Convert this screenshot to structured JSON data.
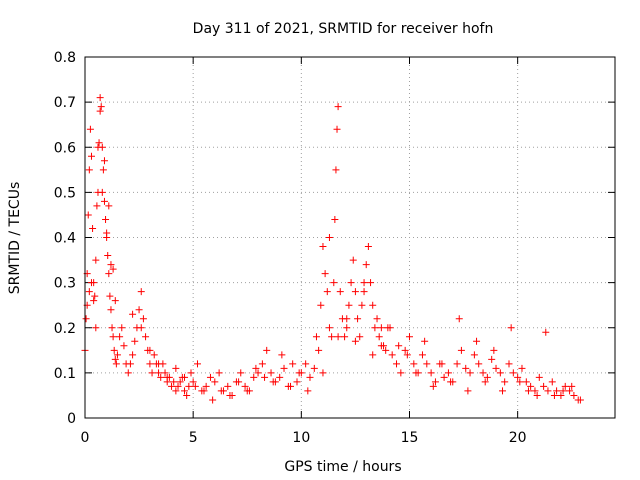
{
  "chart_data": {
    "type": "scatter",
    "title": "Day 311 of 2021, SRMTID for receiver hofn",
    "xlabel": "GPS time / hours",
    "ylabel": "SRMTID / TECUs",
    "xlim": [
      0,
      24.5
    ],
    "ylim": [
      0,
      0.8
    ],
    "xticks": [
      0,
      5,
      10,
      15,
      20
    ],
    "xtick_labels": [
      "0",
      "5",
      "10",
      "15",
      "20"
    ],
    "yticks": [
      0,
      0.1,
      0.2,
      0.3,
      0.4,
      0.5,
      0.6,
      0.7,
      0.8
    ],
    "ytick_labels": [
      "0",
      "0.1",
      "0.2",
      "0.3",
      "0.4",
      "0.5",
      "0.6",
      "0.7",
      "0.8"
    ],
    "grid": true,
    "marker": "+",
    "color": "#ff0000",
    "series": [
      {
        "name": "SRMTID",
        "x": [
          0.0,
          0.05,
          0.1,
          0.15,
          0.2,
          0.25,
          0.3,
          0.35,
          0.4,
          0.45,
          0.5,
          0.55,
          0.6,
          0.65,
          0.7,
          0.75,
          0.8,
          0.85,
          0.9,
          0.95,
          1.0,
          1.05,
          1.1,
          1.15,
          1.2,
          1.25,
          1.3,
          1.35,
          1.4,
          1.45,
          1.5,
          1.6,
          1.7,
          1.8,
          1.9,
          2.0,
          2.1,
          2.2,
          2.3,
          2.4,
          2.5,
          2.6,
          2.7,
          2.8,
          2.9,
          3.0,
          3.1,
          3.2,
          3.3,
          3.4,
          3.5,
          3.6,
          3.7,
          3.8,
          3.9,
          4.0,
          4.1,
          4.2,
          4.3,
          4.4,
          4.5,
          4.6,
          4.7,
          4.8,
          4.9,
          5.0,
          5.2,
          5.4,
          5.6,
          5.8,
          6.0,
          6.2,
          6.4,
          6.6,
          6.8,
          7.0,
          7.2,
          7.4,
          7.6,
          7.8,
          8.0,
          8.2,
          8.4,
          8.6,
          8.8,
          9.0,
          9.2,
          9.4,
          9.6,
          9.8,
          10.0,
          10.2,
          10.4,
          10.6,
          10.8,
          10.9,
          11.0,
          11.1,
          11.2,
          11.3,
          11.4,
          11.5,
          11.55,
          11.6,
          11.65,
          11.7,
          11.8,
          11.9,
          12.0,
          12.1,
          12.2,
          12.3,
          12.4,
          12.5,
          12.6,
          12.7,
          12.8,
          12.9,
          13.0,
          13.1,
          13.2,
          13.3,
          13.4,
          13.5,
          13.6,
          13.7,
          13.8,
          13.9,
          14.0,
          14.2,
          14.4,
          14.6,
          14.8,
          15.0,
          15.2,
          15.4,
          15.6,
          15.8,
          16.0,
          16.2,
          16.4,
          16.6,
          16.8,
          17.0,
          17.2,
          17.4,
          17.6,
          17.8,
          18.0,
          18.2,
          18.4,
          18.6,
          18.8,
          19.0,
          19.2,
          19.4,
          19.6,
          19.8,
          20.0,
          20.2,
          20.4,
          20.6,
          20.8,
          21.0,
          21.2,
          21.4,
          21.6,
          21.8,
          22.0,
          22.2,
          22.4,
          22.6,
          22.8,
          0.1,
          0.3,
          0.5,
          0.7,
          0.9,
          1.1,
          1.3,
          0.2,
          0.4,
          0.6,
          0.8,
          1.0,
          1.2,
          1.4,
          2.2,
          2.6,
          3.0,
          3.4,
          3.8,
          4.2,
          4.6,
          5.1,
          5.5,
          5.9,
          6.3,
          6.7,
          7.1,
          7.5,
          7.9,
          8.3,
          8.7,
          9.1,
          9.5,
          9.9,
          10.3,
          10.7,
          11.0,
          11.3,
          11.7,
          12.1,
          12.5,
          12.9,
          13.3,
          13.7,
          14.1,
          14.5,
          14.9,
          15.3,
          15.7,
          16.1,
          16.5,
          16.9,
          17.3,
          17.7,
          18.1,
          18.5,
          18.9,
          19.3,
          19.7,
          20.1,
          20.5,
          20.9,
          21.3,
          21.7,
          22.1,
          22.5,
          22.9
        ],
        "y": [
          0.15,
          0.22,
          0.32,
          0.45,
          0.55,
          0.64,
          0.58,
          0.42,
          0.3,
          0.27,
          0.35,
          0.47,
          0.5,
          0.61,
          0.71,
          0.69,
          0.6,
          0.55,
          0.48,
          0.44,
          0.4,
          0.36,
          0.32,
          0.27,
          0.24,
          0.2,
          0.18,
          0.15,
          0.13,
          0.12,
          0.14,
          0.18,
          0.2,
          0.16,
          0.12,
          0.1,
          0.12,
          0.14,
          0.17,
          0.2,
          0.24,
          0.28,
          0.22,
          0.18,
          0.15,
          0.12,
          0.1,
          0.14,
          0.12,
          0.1,
          0.09,
          0.12,
          0.1,
          0.08,
          0.09,
          0.07,
          0.08,
          0.06,
          0.07,
          0.08,
          0.09,
          0.06,
          0.05,
          0.07,
          0.1,
          0.08,
          0.12,
          0.06,
          0.07,
          0.09,
          0.08,
          0.1,
          0.06,
          0.07,
          0.05,
          0.08,
          0.1,
          0.07,
          0.06,
          0.09,
          0.1,
          0.12,
          0.15,
          0.1,
          0.08,
          0.09,
          0.11,
          0.07,
          0.12,
          0.08,
          0.1,
          0.12,
          0.09,
          0.11,
          0.15,
          0.25,
          0.38,
          0.32,
          0.28,
          0.2,
          0.18,
          0.3,
          0.44,
          0.55,
          0.64,
          0.69,
          0.28,
          0.22,
          0.18,
          0.2,
          0.25,
          0.3,
          0.35,
          0.28,
          0.22,
          0.18,
          0.25,
          0.3,
          0.34,
          0.38,
          0.3,
          0.25,
          0.2,
          0.22,
          0.18,
          0.2,
          0.16,
          0.15,
          0.2,
          0.14,
          0.12,
          0.1,
          0.15,
          0.18,
          0.12,
          0.1,
          0.14,
          0.12,
          0.1,
          0.08,
          0.12,
          0.09,
          0.1,
          0.08,
          0.12,
          0.15,
          0.11,
          0.1,
          0.14,
          0.12,
          0.1,
          0.09,
          0.13,
          0.11,
          0.1,
          0.08,
          0.12,
          0.1,
          0.09,
          0.11,
          0.08,
          0.07,
          0.06,
          0.09,
          0.07,
          0.06,
          0.08,
          0.06,
          0.05,
          0.07,
          0.06,
          0.05,
          0.04,
          0.25,
          0.3,
          0.2,
          0.68,
          0.57,
          0.47,
          0.33,
          0.28,
          0.26,
          0.6,
          0.5,
          0.41,
          0.34,
          0.26,
          0.23,
          0.2,
          0.15,
          0.12,
          0.09,
          0.11,
          0.09,
          0.07,
          0.06,
          0.04,
          0.06,
          0.05,
          0.08,
          0.06,
          0.11,
          0.09,
          0.08,
          0.14,
          0.07,
          0.1,
          0.06,
          0.18,
          0.1,
          0.4,
          0.18,
          0.22,
          0.17,
          0.28,
          0.14,
          0.16,
          0.2,
          0.16,
          0.14,
          0.1,
          0.17,
          0.07,
          0.12,
          0.08,
          0.22,
          0.06,
          0.17,
          0.08,
          0.15,
          0.06,
          0.2,
          0.08,
          0.06,
          0.05,
          0.19,
          0.05,
          0.06,
          0.07,
          0.04
        ]
      }
    ]
  }
}
